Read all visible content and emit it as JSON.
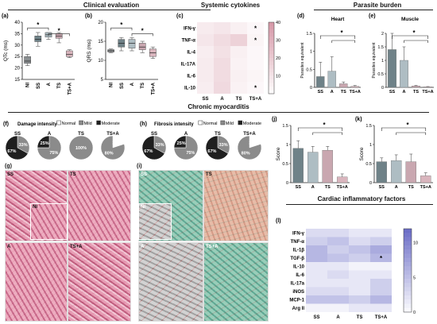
{
  "sections": {
    "clinical": "Clinical evaluation",
    "cytokines": "Systemic cytokines",
    "parasite": "Parasite burden",
    "chronic": "Chronic myocarditis",
    "cardiac": "Cardiac inflammatory factors"
  },
  "panel_letters": [
    "(a)",
    "(b)",
    "(c)",
    "(d)",
    "(e)",
    "(f)",
    "(g)",
    "(h)",
    "(i)",
    "(j)",
    "(k)",
    "(l)"
  ],
  "groups": [
    "SS",
    "A",
    "TS",
    "TS+A"
  ],
  "groups5": [
    "NI",
    "SS",
    "A",
    "TS",
    "TS+A"
  ],
  "colors": {
    "NI": "#8a8f91",
    "SS": "#6f8288",
    "A": "#aebdc3",
    "TS": "#c9a7b0",
    "TSA": "#d9b5bd",
    "pink_high": "#d79aa9",
    "blue_high": "#6d6fc7"
  },
  "chart_data": [
    {
      "id": "a",
      "type": "box",
      "ylabel": "QTc (ms)",
      "ylim": [
        15,
        40
      ],
      "yticks": [
        15,
        20,
        25,
        30,
        35,
        40
      ],
      "categories": [
        "NI",
        "SS",
        "A",
        "TS",
        "TS+A"
      ],
      "medians": [
        23,
        32.5,
        34.5,
        34,
        26
      ],
      "q1": [
        22,
        31.5,
        33.5,
        33,
        25
      ],
      "q3": [
        25,
        34,
        35.5,
        35,
        27.5
      ],
      "min": [
        21,
        29.5,
        32.5,
        31,
        24.5
      ],
      "max": [
        26,
        35.5,
        35.5,
        35.5,
        28
      ],
      "significance": [
        "*",
        "*"
      ]
    },
    {
      "id": "b",
      "type": "box",
      "ylabel": "QRS (ms)",
      "ylim": [
        5,
        20
      ],
      "yticks": [
        5,
        10,
        15,
        20
      ],
      "categories": [
        "NI",
        "SS",
        "A",
        "TS",
        "TS+A"
      ],
      "medians": [
        12.5,
        14.5,
        14.5,
        13.5,
        12
      ],
      "q1": [
        12.2,
        13.5,
        13.2,
        12.8,
        11
      ],
      "q3": [
        12.8,
        15.5,
        15.5,
        14.5,
        13
      ],
      "min": [
        12,
        12.5,
        12.5,
        12,
        10.5
      ],
      "max": [
        13,
        16,
        16,
        15,
        13.5
      ],
      "significance": [
        "*",
        "*"
      ]
    },
    {
      "id": "c",
      "type": "heatmap",
      "rows": [
        "IFN-γ",
        "TNF-α",
        "IL-4",
        "IL-17A",
        "IL-6",
        "IL-10"
      ],
      "columns": [
        "SS",
        "A",
        "TS",
        "TS+A"
      ],
      "values": [
        [
          8,
          10,
          6,
          3
        ],
        [
          10,
          14,
          18,
          4
        ],
        [
          7,
          12,
          6,
          3
        ],
        [
          8,
          14,
          5,
          3
        ],
        [
          8,
          14,
          6,
          4
        ],
        [
          7,
          15,
          5,
          3
        ]
      ],
      "stars": [
        [
          0,
          3
        ],
        [
          1,
          3
        ],
        [
          5,
          3
        ]
      ],
      "scale": [
        0,
        40
      ],
      "scale_ticks": [
        10,
        20,
        30,
        40
      ]
    },
    {
      "id": "d",
      "type": "bar",
      "title": "Heart",
      "ylabel": "Parasites equivalent",
      "categories": [
        "SS",
        "A",
        "TS",
        "TS+A"
      ],
      "values": [
        0.3,
        0.45,
        0.1,
        0.03
      ],
      "errors": [
        0.4,
        0.4,
        0.05,
        0.02
      ],
      "ylim": [
        0,
        1.5
      ],
      "yticks": [
        0,
        0.5,
        1.0,
        1.5
      ],
      "significance": [
        "*"
      ]
    },
    {
      "id": "e",
      "type": "bar",
      "title": "Muscle",
      "ylabel": "Parasites equivalent",
      "categories": [
        "SS",
        "A",
        "TS",
        "TS+A"
      ],
      "values": [
        1.4,
        1.0,
        0.05,
        0.02
      ],
      "errors": [
        0.6,
        0.5,
        0.02,
        0.01
      ],
      "ylim": [
        0,
        2.0
      ],
      "yticks": [
        0,
        0.5,
        1.0,
        1.5,
        2.0
      ],
      "significance": [
        "*"
      ]
    },
    {
      "id": "f",
      "type": "pie",
      "title": "Damage intensity",
      "legend": [
        "Normal",
        "Mild",
        "Moderate"
      ],
      "pies": [
        {
          "label": "SS",
          "slices": [
            0,
            33,
            67
          ],
          "labels": [
            "",
            "33%",
            "67%"
          ]
        },
        {
          "label": "A",
          "slices": [
            0,
            75,
            25
          ],
          "labels": [
            "",
            "75%",
            "25%"
          ]
        },
        {
          "label": "TS",
          "slices": [
            0,
            100,
            0
          ],
          "labels": [
            "",
            "100%",
            ""
          ]
        },
        {
          "label": "TS+A",
          "slices": [
            20,
            80,
            0
          ],
          "labels": [
            "20%",
            "80%",
            ""
          ]
        }
      ]
    },
    {
      "id": "h",
      "type": "pie",
      "title": "Fibrosis intensity",
      "legend": [
        "Normal",
        "Mild",
        "Moderate"
      ],
      "pies": [
        {
          "label": "SS",
          "slices": [
            0,
            33,
            67
          ],
          "labels": [
            "",
            "33%",
            "67%"
          ]
        },
        {
          "label": "A",
          "slices": [
            0,
            75,
            25
          ],
          "labels": [
            "",
            "75%",
            "25%"
          ]
        },
        {
          "label": "TS",
          "slices": [
            0,
            33,
            67
          ],
          "labels": [
            "",
            "33%",
            "67%"
          ]
        },
        {
          "label": "TS+A",
          "slices": [
            20,
            80,
            0
          ],
          "labels": [
            "20%",
            "80%",
            ""
          ]
        }
      ]
    },
    {
      "id": "j",
      "type": "bar",
      "ylabel": "Score",
      "categories": [
        "SS",
        "A",
        "TS",
        "TS+A"
      ],
      "values": [
        0.9,
        0.8,
        0.85,
        0.15
      ],
      "errors": [
        0.2,
        0.15,
        0.1,
        0.08
      ],
      "ylim": [
        0,
        1.5
      ],
      "yticks": [
        0,
        0.5,
        1.0,
        1.5
      ],
      "significance": [
        "*"
      ]
    },
    {
      "id": "k",
      "type": "bar",
      "ylabel": "Score",
      "categories": [
        "SS",
        "A",
        "TS",
        "TS+A"
      ],
      "values": [
        0.55,
        0.58,
        0.55,
        0.18
      ],
      "errors": [
        0.1,
        0.15,
        0.2,
        0.08
      ],
      "ylim": [
        0,
        1.5
      ],
      "yticks": [
        0,
        0.5,
        1.0,
        1.5
      ],
      "significance": [
        "*"
      ]
    },
    {
      "id": "l",
      "type": "heatmap",
      "rows": [
        "IFN-γ",
        "TNF-α",
        "IL-1β",
        "TGF-β",
        "IL-10",
        "IL-6",
        "IL-17a",
        "iNOS",
        "MCP-1",
        "Arg II"
      ],
      "columns": [
        "SS",
        "A",
        "TS",
        "TS+A"
      ],
      "values": [
        [
          3,
          3,
          2,
          2
        ],
        [
          4,
          5,
          3,
          4
        ],
        [
          6,
          4,
          5,
          7
        ],
        [
          6,
          5,
          4,
          6
        ],
        [
          2,
          2,
          1,
          1
        ],
        [
          2,
          3,
          2,
          2
        ],
        [
          2,
          2,
          2,
          4
        ],
        [
          3,
          3,
          2,
          4
        ],
        [
          5,
          5,
          4,
          6
        ],
        [
          1,
          1,
          2,
          2
        ]
      ],
      "stars": [
        [
          3,
          3
        ]
      ],
      "scale": [
        0,
        12
      ],
      "scale_ticks": [
        0,
        5,
        10
      ]
    }
  ],
  "micro_g": {
    "tl": "SS",
    "tr": "TS",
    "bl": "A",
    "br": "TS+A",
    "inset": "NI"
  },
  "micro_i": {
    "tl": "SS",
    "tr": "TS",
    "bl": "A",
    "br": "TS+A",
    "inset": "NI"
  }
}
